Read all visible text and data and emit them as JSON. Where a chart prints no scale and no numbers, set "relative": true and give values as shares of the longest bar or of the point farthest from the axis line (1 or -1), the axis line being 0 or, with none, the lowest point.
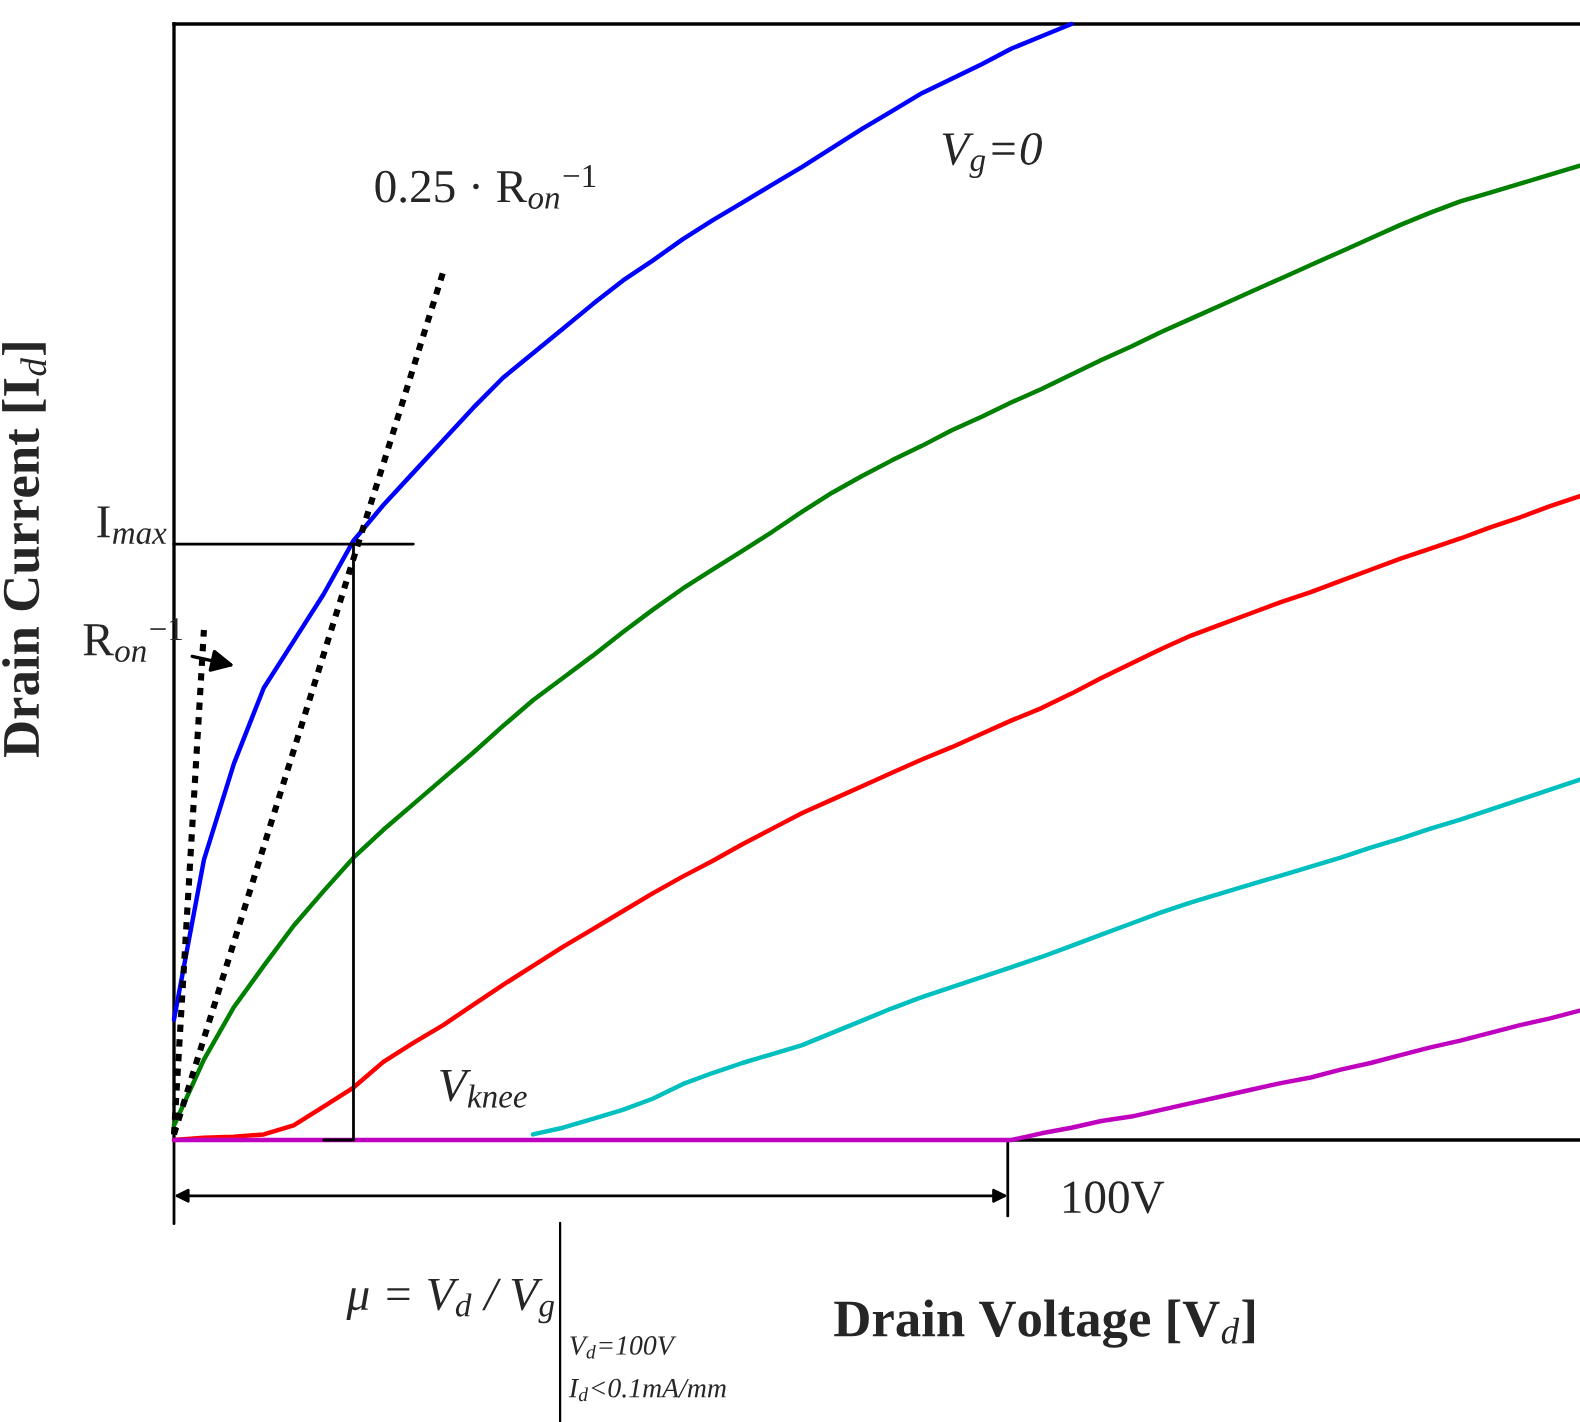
{
  "chart_data": {
    "type": "line",
    "relative": true,
    "xlabel": "Drain Voltage [V$_{d}$]",
    "ylabel": "Drain Current [I$_{d}$]",
    "categories": [
      null,
      null,
      null,
      null,
      null,
      null,
      null,
      null,
      null,
      null,
      null,
      null,
      null,
      null,
      null,
      null,
      null,
      null,
      null,
      null,
      null,
      null,
      null,
      null,
      null,
      null,
      null,
      null,
      null,
      null,
      null,
      null,
      null,
      null,
      null,
      null,
      null,
      null,
      null,
      null,
      null,
      null,
      null,
      null,
      null,
      null,
      null,
      null
    ],
    "grid": false,
    "legend": false,
    "marker": "none",
    "series": [
      {
        "color": "#0000ff",
        "line_style": "solid",
        "values": [
          0.108,
          0.251,
          0.337,
          0.405,
          0.447,
          0.489,
          0.537,
          0.569,
          0.598,
          0.627,
          0.656,
          0.683,
          0.705,
          0.727,
          0.749,
          0.77,
          0.788,
          0.807,
          0.824,
          0.84,
          0.856,
          0.872,
          0.889,
          0.906,
          0.922,
          0.938,
          0.951,
          0.964,
          0.978,
          0.989,
          1,
          null,
          null,
          null,
          null,
          null,
          null,
          null,
          null,
          null,
          null,
          null,
          null,
          null,
          null,
          null,
          null,
          null
        ]
      },
      {
        "color": "#008000",
        "line_style": "solid",
        "values": [
          0.013,
          0.072,
          0.119,
          0.156,
          0.192,
          0.223,
          0.253,
          0.278,
          0.301,
          0.324,
          0.347,
          0.371,
          0.394,
          0.414,
          0.434,
          0.455,
          0.475,
          0.494,
          0.511,
          0.528,
          0.545,
          0.563,
          0.58,
          0.595,
          0.609,
          0.622,
          0.636,
          0.648,
          0.661,
          0.673,
          0.686,
          0.699,
          0.711,
          0.724,
          0.736,
          0.748,
          0.76,
          0.772,
          0.784,
          0.796,
          0.808,
          0.82,
          0.831,
          0.841,
          0.849,
          0.857,
          0.865,
          0.873
        ]
      },
      {
        "color": "#ff0000",
        "line_style": "solid",
        "values": [
          0,
          0.002,
          0.003,
          0.005,
          0.013,
          0.03,
          0.047,
          0.07,
          0.087,
          0.103,
          0.121,
          0.139,
          0.156,
          0.173,
          0.189,
          0.205,
          0.221,
          0.236,
          0.25,
          0.265,
          0.279,
          0.293,
          0.305,
          0.317,
          0.329,
          0.341,
          0.352,
          0.364,
          0.376,
          0.387,
          0.4,
          0.414,
          0.427,
          0.44,
          0.452,
          0.462,
          0.472,
          0.482,
          0.491,
          0.501,
          0.511,
          0.521,
          0.53,
          0.539,
          0.549,
          0.558,
          0.568,
          0.577
        ]
      },
      {
        "color": "#00bfbf",
        "line_style": "solid",
        "values": [
          null,
          null,
          null,
          null,
          null,
          null,
          null,
          null,
          null,
          null,
          null,
          null,
          0.005,
          0.011,
          0.019,
          0.027,
          0.037,
          0.05,
          0.06,
          0.069,
          0.077,
          0.085,
          0.096,
          0.107,
          0.118,
          0.128,
          0.137,
          0.146,
          0.155,
          0.164,
          0.174,
          0.184,
          0.194,
          0.204,
          0.213,
          0.221,
          0.229,
          0.237,
          0.245,
          0.253,
          0.262,
          0.27,
          0.279,
          0.287,
          0.296,
          0.305,
          0.314,
          0.323
        ]
      },
      {
        "color": "#bf00bf",
        "line_style": "solid",
        "values": [
          0,
          0,
          0,
          0,
          0,
          0,
          0,
          0,
          0,
          0,
          0,
          0,
          0,
          0,
          0,
          0,
          0,
          0,
          0,
          0,
          0,
          0,
          0,
          0,
          0,
          0,
          0,
          0,
          0,
          0.006,
          0.011,
          0.017,
          0.021,
          0.027,
          0.033,
          0.039,
          0.045,
          0.051,
          0.056,
          0.063,
          0.069,
          0.076,
          0.083,
          0.089,
          0.096,
          0.103,
          0.109,
          0.116
        ]
      },
      {
        "color": "#000000",
        "line_style": "dotted",
        "values": [
          0.005,
          0.457,
          null,
          null,
          null,
          null,
          null,
          null,
          null,
          null,
          null,
          null,
          null,
          null,
          null,
          null,
          null,
          null,
          null,
          null,
          null,
          null,
          null,
          null,
          null,
          null,
          null,
          null,
          null,
          null,
          null,
          null,
          null,
          null,
          null,
          null,
          null,
          null,
          null,
          null,
          null,
          null,
          null,
          null,
          null,
          null,
          null,
          null
        ]
      },
      {
        "color": "#000000",
        "line_style": "dotted",
        "values": [
          0.005,
          0.091,
          0.177,
          0.263,
          0.349,
          0.435,
          0.521,
          0.606,
          0.692,
          0.778,
          null,
          null,
          null,
          null,
          null,
          null,
          null,
          null,
          null,
          null,
          null,
          null,
          null,
          null,
          null,
          null,
          null,
          null,
          null,
          null,
          null,
          null,
          null,
          null,
          null,
          null,
          null,
          null,
          null,
          null,
          null,
          null,
          null,
          null,
          null,
          null,
          null,
          null
        ]
      },
      {
        "color": "#000000",
        "line_style": "solid",
        "values": [
          0.534,
          0.534,
          0.534,
          0.534,
          0.534,
          0.534,
          0.534,
          0.534,
          0.534,
          null,
          null,
          null,
          null,
          null,
          null,
          null,
          null,
          null,
          null,
          null,
          null,
          null,
          null,
          null,
          null,
          null,
          null,
          null,
          null,
          null,
          null,
          null,
          null,
          null,
          null,
          null,
          null,
          null,
          null,
          null,
          null,
          null,
          null,
          null,
          null,
          null,
          null,
          null
        ]
      },
      {
        "type": "step",
        "color": "#000000",
        "line_style": "solid",
        "values": [
          null,
          null,
          null,
          null,
          null,
          0,
          0.534,
          null,
          null,
          null,
          null,
          null,
          null,
          null,
          null,
          null,
          null,
          null,
          null,
          null,
          null,
          null,
          null,
          null,
          null,
          null,
          null,
          null,
          null,
          null,
          null,
          null,
          null,
          null,
          null,
          null,
          null,
          null,
          null,
          null,
          null,
          null,
          null,
          null,
          null,
          null,
          null,
          null
        ]
      }
    ],
    "annotations": [
      "V$_{g}$=0",
      "0.25 · R$_{on}$$^{−1}$",
      "I$_{max}$",
      "R$_{on}$$^{−1}$",
      "V$_{knee}$",
      "100V",
      "μ = V$_{d}$ / V$_{g}$",
      "V$_{d}$=100V",
      "I$_{d}$<0.1mA/mm"
    ]
  }
}
